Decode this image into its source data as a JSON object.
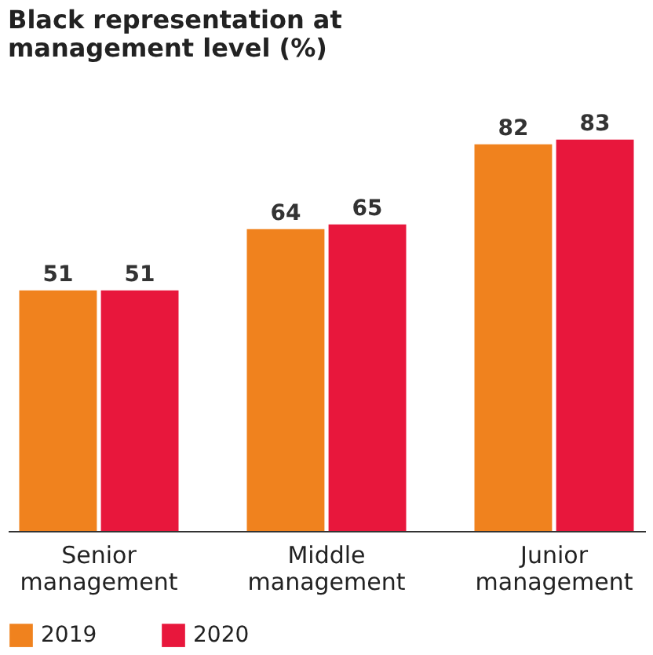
{
  "chart_data": {
    "type": "bar",
    "title": "Black representation at management level (%)",
    "categories": [
      "Senior management",
      "Middle management",
      "Junior management"
    ],
    "series": [
      {
        "name": "2019",
        "color": "#f0821e",
        "values": [
          51,
          64,
          82
        ]
      },
      {
        "name": "2020",
        "color": "#e8173c",
        "values": [
          51,
          65,
          83
        ]
      }
    ],
    "data_labels": true,
    "grid": false,
    "legend": "bottom left"
  }
}
